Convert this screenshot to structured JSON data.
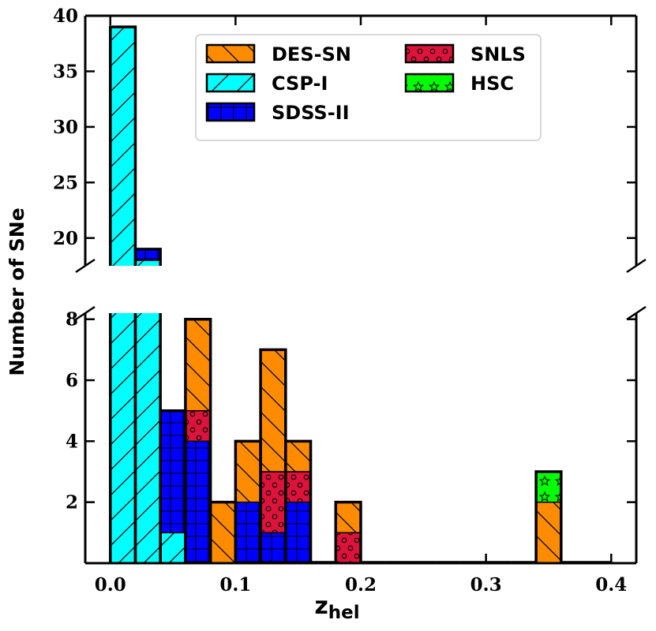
{
  "chart_data": {
    "type": "bar",
    "stacked": true,
    "broken_y_axis": true,
    "xlabel": "z",
    "xlabel_sub": "hel",
    "ylabel": "Number of SNe",
    "xlim": [
      -0.02,
      0.42
    ],
    "x_ticks": [
      0.0,
      0.1,
      0.2,
      0.3,
      0.4
    ],
    "x_tick_labels": [
      "0.0",
      "0.1",
      "0.2",
      "0.3",
      "0.4"
    ],
    "upper_ylim": [
      17.5,
      40
    ],
    "upper_y_ticks": [
      20,
      25,
      30,
      35,
      40
    ],
    "lower_ylim": [
      0,
      8.2
    ],
    "lower_y_ticks": [
      2,
      4,
      6,
      8
    ],
    "bin_width": 0.02,
    "bin_starts": [
      0.0,
      0.02,
      0.04,
      0.06,
      0.08,
      0.1,
      0.12,
      0.14,
      0.16,
      0.18,
      0.2,
      0.22,
      0.24,
      0.26,
      0.28,
      0.3,
      0.32,
      0.34,
      0.36,
      0.38
    ],
    "legend_position": "top-center",
    "series": [
      {
        "name": "CSP-I",
        "color": "#00ffff",
        "hatch": "diagonal-forward",
        "values": [
          39,
          18,
          1,
          0,
          0,
          0,
          0,
          0,
          0,
          0,
          0,
          0,
          0,
          0,
          0,
          0,
          0,
          0,
          0,
          0
        ]
      },
      {
        "name": "SDSS-II",
        "color": "#0000ff",
        "hatch": "grid",
        "values": [
          0,
          1,
          4,
          4,
          0,
          2,
          1,
          2,
          0,
          0,
          0,
          0,
          0,
          0,
          0,
          0,
          0,
          0,
          0,
          0
        ]
      },
      {
        "name": "SNLS",
        "color": "#dc143c",
        "hatch": "circles",
        "values": [
          0,
          0,
          0,
          1,
          0,
          0,
          2,
          1,
          0,
          1,
          0,
          0,
          0,
          0,
          0,
          0,
          0,
          0,
          0,
          0
        ]
      },
      {
        "name": "DES-SN",
        "color": "#ff8c00",
        "hatch": "diagonal-back",
        "values": [
          0,
          0,
          0,
          3,
          2,
          2,
          4,
          1,
          0,
          1,
          0,
          0,
          0,
          0,
          0,
          0,
          0,
          2,
          0,
          0
        ]
      },
      {
        "name": "HSC",
        "color": "#00ff00",
        "hatch": "stars",
        "values": [
          0,
          0,
          0,
          0,
          0,
          0,
          0,
          0,
          0,
          0,
          0,
          0,
          0,
          0,
          0,
          0,
          0,
          1,
          0,
          0
        ]
      }
    ],
    "legend_order": [
      "DES-SN",
      "SNLS",
      "CSP-I",
      "HSC",
      "SDSS-II"
    ]
  }
}
